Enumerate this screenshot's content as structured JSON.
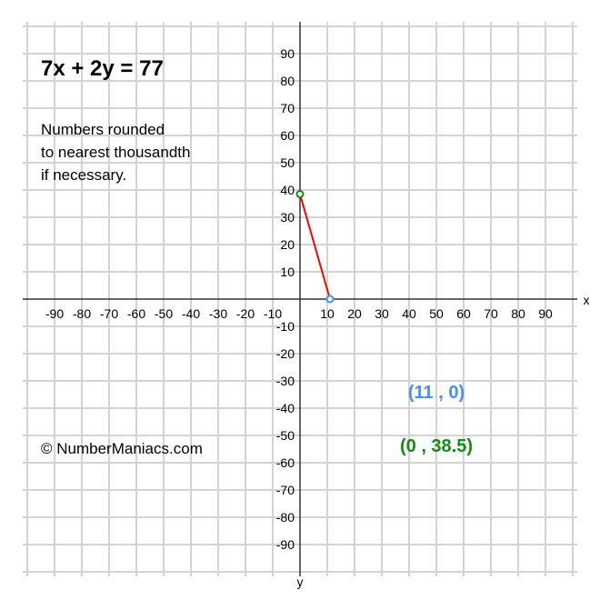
{
  "title": "7x + 2y = 77",
  "note_lines": [
    "Numbers rounded",
    "to nearest thousandth",
    "if necessary."
  ],
  "copyright": "© NumberManiacs.com",
  "point_labels": {
    "x_intercept": "(11 , 0)",
    "y_intercept": "(0 , 38.5)"
  },
  "colors": {
    "line": "#ff0000",
    "x_intercept": "#4a8ff0",
    "y_intercept": "#178a17",
    "grid": "#d3d3d3",
    "axis": "#333333"
  },
  "chart_data": {
    "type": "line",
    "equation": "7x + 2y = 77",
    "xlabel": "x",
    "ylabel": "y",
    "xlim": [
      -100,
      100
    ],
    "ylim": [
      -100,
      100
    ],
    "grid": true,
    "x_ticks": [
      -90,
      -80,
      -70,
      -60,
      -50,
      -40,
      -30,
      -20,
      -10,
      10,
      20,
      30,
      40,
      50,
      60,
      70,
      80,
      90
    ],
    "y_ticks": [
      90,
      80,
      70,
      60,
      50,
      40,
      30,
      20,
      10,
      -10,
      -20,
      -30,
      -40,
      -50,
      -60,
      -70,
      -80,
      -90
    ],
    "series": [
      {
        "points": [
          [
            0,
            38.5
          ],
          [
            11,
            0
          ]
        ]
      }
    ],
    "markers": [
      {
        "x": 11,
        "y": 0,
        "label": "(11 , 0)",
        "color": "#4a8ff0"
      },
      {
        "x": 0,
        "y": 38.5,
        "label": "(0 , 38.5)",
        "color": "#178a17"
      }
    ]
  }
}
